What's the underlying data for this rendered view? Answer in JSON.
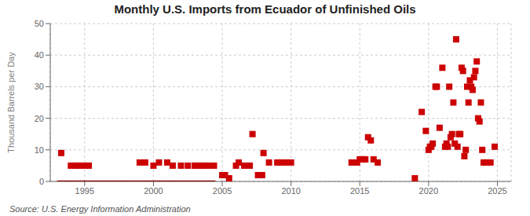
{
  "chart_data": {
    "type": "scatter",
    "title": "Monthly U.S. Imports from Ecuador of Unfinished Oils",
    "y_label": "Thousand Barrels per Day",
    "annotation": "Source: U.S. Energy Information Administration",
    "xlim": [
      1992.5,
      2026.0
    ],
    "ylim": [
      0,
      50
    ],
    "xticks": [
      1995,
      2000,
      2005,
      2010,
      2015,
      2020,
      2025
    ],
    "yticks": [
      0,
      10,
      20,
      30,
      40,
      50
    ],
    "grid": true,
    "series": [
      {
        "type": "line",
        "color": "#8b0000",
        "x": [
          1993.0,
          2004.5
        ],
        "values": [
          0,
          0
        ]
      },
      {
        "type": "scatter",
        "color": "#cc0000",
        "marker": "square",
        "x": [
          1993.3,
          1994.0,
          1994.3,
          1994.6,
          1995.0,
          1995.3,
          1999.0,
          1999.4,
          2000.0,
          2000.4,
          2001.0,
          2001.4,
          2002.0,
          2002.5,
          2003.0,
          2003.3,
          2003.6,
          2004.0,
          2004.4,
          2005.0,
          2005.2,
          2005.5,
          2006.0,
          2006.2,
          2006.6,
          2007.0,
          2007.2,
          2007.6,
          2007.9,
          2008.0,
          2008.4,
          2009.0,
          2009.3,
          2009.6,
          2010.0,
          2014.4,
          2014.8,
          2015.0,
          2015.2,
          2015.4,
          2015.6,
          2015.8,
          2016.0,
          2016.3,
          2019.0,
          2019.5,
          2019.8,
          2020.0,
          2020.1,
          2020.2,
          2020.3,
          2020.5,
          2020.6,
          2020.8,
          2021.0,
          2021.2,
          2021.3,
          2021.4,
          2021.5,
          2021.6,
          2021.7,
          2021.8,
          2021.9,
          2022.0,
          2022.1,
          2022.2,
          2022.3,
          2022.4,
          2022.5,
          2022.6,
          2022.7,
          2022.8,
          2022.9,
          2023.0,
          2023.1,
          2023.2,
          2023.3,
          2023.4,
          2023.5,
          2023.6,
          2023.7,
          2023.8,
          2023.9,
          2024.0,
          2024.2,
          2024.5,
          2024.8
        ],
        "values": [
          9,
          5,
          5,
          5,
          5,
          5,
          6,
          6,
          5,
          6,
          6,
          5,
          5,
          5,
          5,
          5,
          5,
          5,
          5,
          2,
          2,
          1,
          5,
          6,
          5,
          5,
          15,
          2,
          2,
          9,
          6,
          6,
          6,
          6,
          6,
          6,
          6,
          7,
          7,
          7,
          14,
          13,
          7,
          6,
          1,
          22,
          16,
          10,
          11,
          11,
          12,
          30,
          30,
          17,
          36,
          11,
          12,
          11,
          30,
          14,
          15,
          25,
          12,
          45,
          11,
          15,
          15,
          36,
          35,
          8,
          10,
          30,
          25,
          32,
          30,
          29,
          33,
          35,
          38,
          20,
          19,
          25,
          10,
          6,
          6,
          6,
          11
        ]
      }
    ]
  }
}
